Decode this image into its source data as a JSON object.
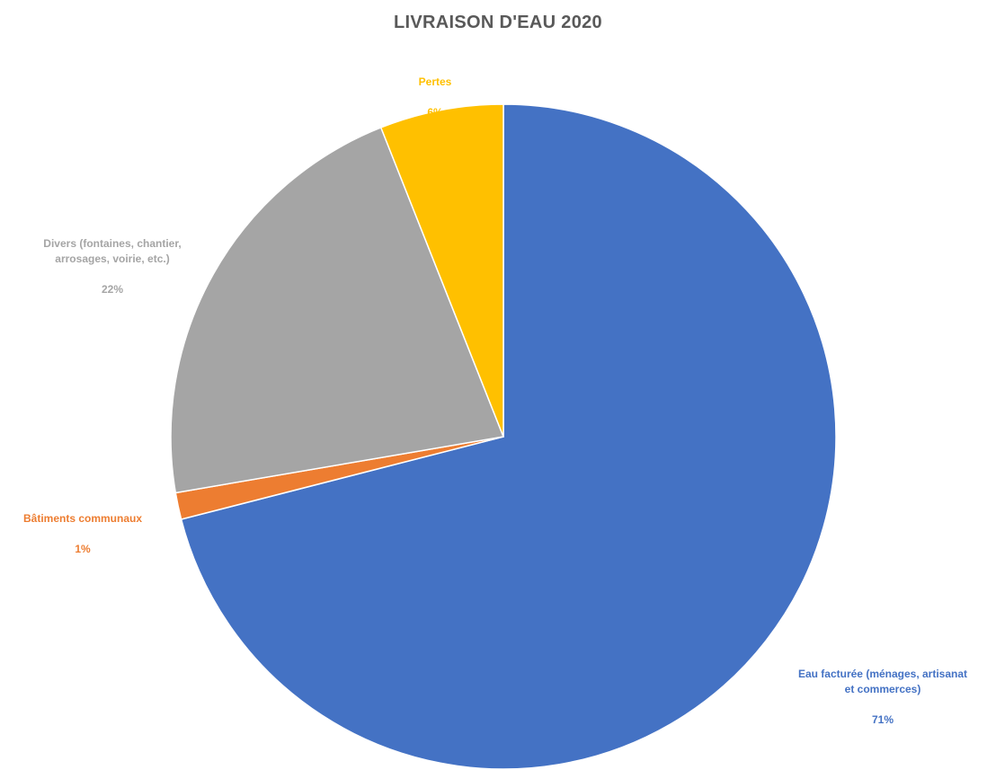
{
  "chart_data": {
    "type": "pie",
    "title": "LIVRAISON D'EAU 2020",
    "slices": [
      {
        "label": "Eau facturée (ménages, artisanat\net commerces)",
        "percent_label": "71%",
        "value": 71,
        "color": "#4472C4"
      },
      {
        "label": "Bâtiments communaux",
        "percent_label": "1%",
        "value": 1.3,
        "color": "#ED7D31"
      },
      {
        "label": "Divers (fontaines, chantier,\narrosages, voirie, etc.)",
        "percent_label": "22%",
        "value": 21.7,
        "color": "#A5A5A5"
      },
      {
        "label": "Pertes",
        "percent_label": "6%",
        "value": 6,
        "color": "#FFC000"
      }
    ]
  }
}
